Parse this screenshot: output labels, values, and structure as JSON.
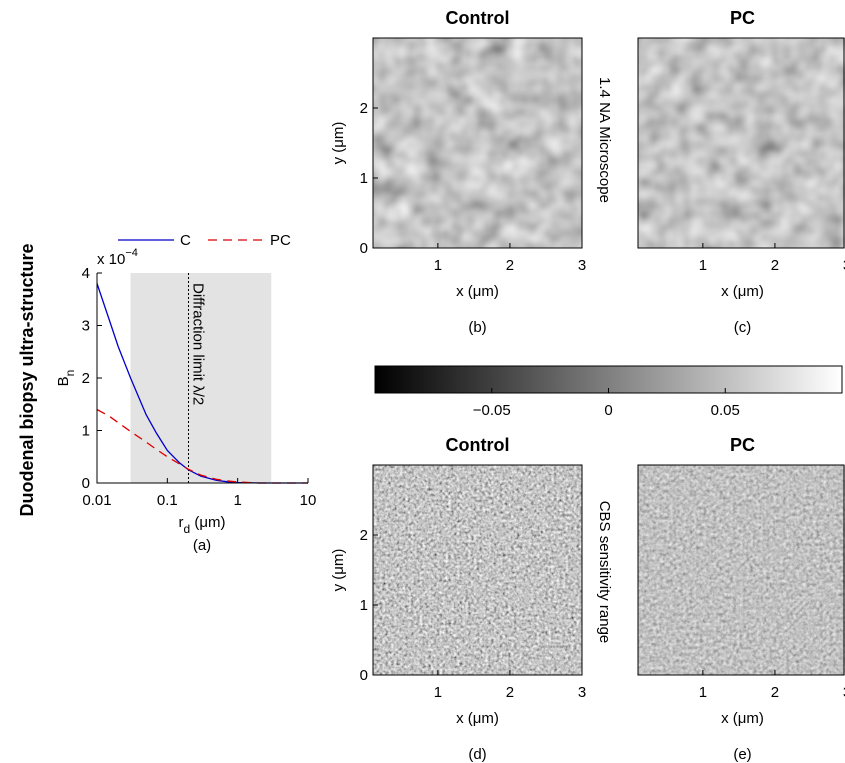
{
  "row_label": "Duodenal biopsy ultra-structure",
  "side_labels": [
    "1.4 NA Microscope",
    "CBS sensitivity range"
  ],
  "chart_data": [
    {
      "type": "line",
      "caption": "(a)",
      "x": [
        0.01,
        0.015,
        0.02,
        0.03,
        0.05,
        0.07,
        0.1,
        0.15,
        0.2,
        0.3,
        0.5,
        0.7,
        1,
        2,
        5,
        10
      ],
      "series": [
        {
          "name": "C",
          "color": "#0000cc",
          "dash": "none",
          "values": [
            3.8,
            3.1,
            2.6,
            2.0,
            1.3,
            0.95,
            0.62,
            0.38,
            0.25,
            0.13,
            0.05,
            0.025,
            0.01,
            0,
            0,
            0
          ]
        },
        {
          "name": "PC",
          "color": "#dd0000",
          "dash": "9,6",
          "values": [
            1.4,
            1.27,
            1.15,
            0.98,
            0.78,
            0.64,
            0.5,
            0.36,
            0.26,
            0.15,
            0.07,
            0.04,
            0.02,
            0,
            0,
            0
          ]
        }
      ],
      "xlog": true,
      "xlim": [
        0.01,
        10
      ],
      "xticks": [
        0.01,
        0.1,
        1,
        10
      ],
      "ylim": [
        0,
        4
      ],
      "yticks": [
        0,
        1,
        2,
        3,
        4
      ],
      "y_multiplier": {
        "base": "x 10",
        "exp": "−4"
      },
      "ylabel": {
        "text": "B",
        "sub": "n"
      },
      "xlabel": {
        "text": "r",
        "sub": "d",
        "unit": " (μm)"
      },
      "shaded_range": [
        0.03,
        3
      ],
      "vline": {
        "x": 0.2,
        "label": "Diffraction limit λ/2"
      }
    },
    {
      "type": "image",
      "title": "Control",
      "title_color": "#0000ee",
      "caption": "(b)",
      "xlabel": "x (μm)",
      "ylabel": "y (μm)",
      "xlim": [
        0.1,
        3
      ],
      "ylim": [
        0,
        3
      ],
      "xticks": [
        1,
        2,
        3
      ],
      "yticks": [
        0,
        1,
        2
      ],
      "texture": "smooth"
    },
    {
      "type": "image",
      "title": "PC",
      "title_color": "#ee0000",
      "caption": "(c)",
      "xlabel": "x (μm)",
      "xlim": [
        0.1,
        3
      ],
      "ylim": [
        0,
        3
      ],
      "xticks": [
        1,
        2,
        3
      ],
      "texture": "smooth"
    },
    {
      "type": "colorbar",
      "lim": [
        -0.1,
        0.1
      ],
      "ticks": [
        {
          "value": -0.05,
          "label": "−0.05"
        },
        0,
        0.05
      ]
    },
    {
      "type": "image",
      "title": "Control",
      "title_color": "#0000ee",
      "caption": "(d)",
      "xlabel": "x (μm)",
      "ylabel": "y (μm)",
      "xlim": [
        0.1,
        3
      ],
      "ylim": [
        0,
        3
      ],
      "xticks": [
        1,
        2,
        3
      ],
      "yticks": [
        0,
        1,
        2
      ],
      "texture": "noisy"
    },
    {
      "type": "image",
      "title": "PC",
      "title_color": "#ee0000",
      "caption": "(e)",
      "xlabel": "x (μm)",
      "xlim": [
        0.1,
        3
      ],
      "ylim": [
        0,
        3
      ],
      "xticks": [
        1,
        2,
        3
      ],
      "texture": "noisy-soft"
    }
  ]
}
